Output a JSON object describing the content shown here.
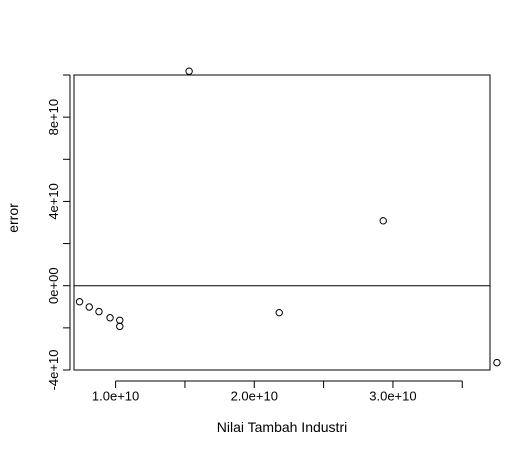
{
  "chart_data": {
    "type": "scatter",
    "title": "",
    "xlabel": "Nilai Tambah Industri",
    "ylabel": "error",
    "xlim": [
      7000000000,
      37000000000
    ],
    "ylim": [
      -40000000000,
      100000000000
    ],
    "x_ticks": [
      {
        "value": 10000000000,
        "label": "1.0e+10"
      },
      {
        "value": 15000000000,
        "label": ""
      },
      {
        "value": 20000000000,
        "label": "2.0e+10"
      },
      {
        "value": 25000000000,
        "label": ""
      },
      {
        "value": 30000000000,
        "label": "3.0e+10"
      },
      {
        "value": 35000000000,
        "label": ""
      }
    ],
    "y_ticks": [
      {
        "value": -40000000000,
        "label": "-4e+10"
      },
      {
        "value": -20000000000,
        "label": ""
      },
      {
        "value": 0,
        "label": "0e+00"
      },
      {
        "value": 20000000000,
        "label": ""
      },
      {
        "value": 40000000000,
        "label": "4e+10"
      },
      {
        "value": 60000000000,
        "label": ""
      },
      {
        "value": 80000000000,
        "label": "8e+10"
      },
      {
        "value": 100000000000,
        "label": ""
      }
    ],
    "reference_line": {
      "y": 0
    },
    "points": [
      {
        "x": 7400000000,
        "y": -7600000000
      },
      {
        "x": 8100000000,
        "y": -10100000000
      },
      {
        "x": 8800000000,
        "y": -12300000000
      },
      {
        "x": 9600000000,
        "y": -15200000000
      },
      {
        "x": 10300000000,
        "y": -16400000000
      },
      {
        "x": 10300000000,
        "y": -19300000000
      },
      {
        "x": 15300000000,
        "y": 101800000000
      },
      {
        "x": 21800000000,
        "y": -12800000000
      },
      {
        "x": 29300000000,
        "y": 30800000000
      },
      {
        "x": 37500000000,
        "y": -36500000000
      }
    ],
    "grid": false,
    "legend": "none"
  }
}
